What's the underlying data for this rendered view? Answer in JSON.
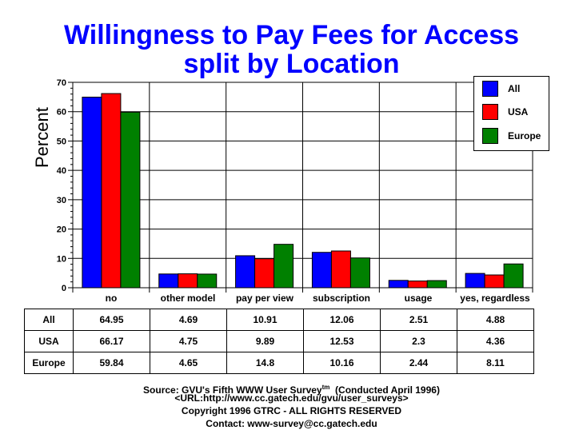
{
  "header": {
    "title_line1": "Willingness to Pay Fees for Access",
    "title_line2": "split by Location"
  },
  "colors": {
    "All": "#0000ff",
    "USA": "#ff0000",
    "Europe": "#008000",
    "title": "#0000ff"
  },
  "chart_data": {
    "type": "bar",
    "title": "Willingness to Pay Fees for Access split by Location",
    "xlabel": "",
    "ylabel": "Percent",
    "ylim": [
      0,
      70
    ],
    "yticks": [
      0,
      10,
      20,
      30,
      40,
      50,
      60,
      70
    ],
    "grid": true,
    "legend_position": "top-right",
    "categories": [
      "no",
      "other model",
      "pay per view",
      "subscription",
      "usage",
      "yes, regardless"
    ],
    "series": [
      {
        "name": "All",
        "color": "#0000ff",
        "values": [
          64.95,
          4.69,
          10.91,
          12.06,
          2.51,
          4.88
        ]
      },
      {
        "name": "USA",
        "color": "#ff0000",
        "values": [
          66.17,
          4.75,
          9.89,
          12.53,
          2.3,
          4.36
        ]
      },
      {
        "name": "Europe",
        "color": "#008000",
        "values": [
          59.84,
          4.65,
          14.8,
          10.16,
          2.44,
          8.11
        ]
      }
    ]
  },
  "legend": {
    "items": [
      {
        "label": "All"
      },
      {
        "label": "USA"
      },
      {
        "label": "Europe"
      }
    ]
  },
  "table": {
    "rows": [
      {
        "label": "All",
        "values": [
          "64.95",
          "4.69",
          "10.91",
          "12.06",
          "2.51",
          "4.88"
        ]
      },
      {
        "label": "USA",
        "values": [
          "66.17",
          "4.75",
          "9.89",
          "12.53",
          "2.3",
          "4.36"
        ]
      },
      {
        "label": "Europe",
        "values": [
          "59.84",
          "4.65",
          "14.8",
          "10.16",
          "2.44",
          "8.11"
        ]
      }
    ]
  },
  "footer": {
    "source": "Source: GVU's Fifth WWW User Survey",
    "tm": "tm",
    "conducted": "  (Conducted April 1996)",
    "url": "<URL:http://www.cc.gatech.edu/gvu/user_surveys>",
    "copyright": "Copyright 1996 GTRC -  ALL RIGHTS RESERVED",
    "contact": "Contact: www-survey@cc.gatech.edu"
  }
}
